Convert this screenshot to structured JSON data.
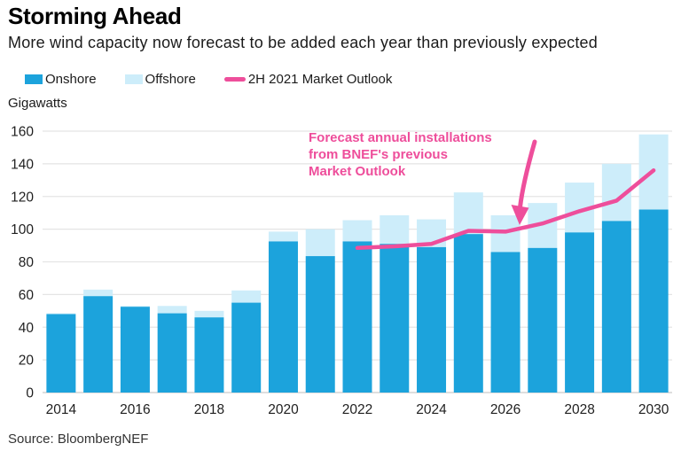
{
  "header": {
    "title": "Storming Ahead",
    "subtitle": "More wind capacity now forecast to be added each year than previously expected"
  },
  "legend": [
    {
      "label": "Onshore",
      "color": "#1CA3DC",
      "type": "swatch"
    },
    {
      "label": "Offshore",
      "color": "#CDEDFA",
      "type": "swatch"
    },
    {
      "label": "2H 2021 Market Outlook",
      "color": "#EE4E9B",
      "type": "line"
    }
  ],
  "unit_label": "Gigawatts",
  "annotation": {
    "color": "#EE4E9B",
    "lines": [
      "Forecast annual installations",
      "from BNEF's previous",
      "Market Outlook"
    ]
  },
  "source": "Source: BloombergNEF",
  "chart_data": {
    "type": "bar",
    "stacked": true,
    "title": "Storming Ahead",
    "subtitle": "More wind capacity now forecast to be added each year than previously expected",
    "ylabel": "Gigawatts",
    "ylim": [
      0,
      160
    ],
    "yticks": [
      0,
      20,
      40,
      60,
      80,
      100,
      120,
      140,
      160
    ],
    "xticks": [
      2014,
      2016,
      2018,
      2020,
      2022,
      2024,
      2026,
      2028,
      2030
    ],
    "grid": true,
    "legend_position": "top",
    "categories": [
      2014,
      2015,
      2016,
      2017,
      2018,
      2019,
      2020,
      2021,
      2022,
      2023,
      2024,
      2025,
      2026,
      2027,
      2028,
      2029,
      2030
    ],
    "series": [
      {
        "name": "Onshore",
        "type": "bar",
        "color": "#1CA3DC",
        "values": [
          48,
          59,
          52.5,
          48.5,
          46,
          55,
          92.5,
          83.5,
          92.5,
          91,
          89,
          97,
          86,
          88.5,
          98,
          105,
          112
        ]
      },
      {
        "name": "Offshore",
        "type": "bar",
        "color": "#CDEDFA",
        "values": [
          0.5,
          4,
          0.5,
          4.5,
          4,
          7.5,
          6,
          16.5,
          13,
          17.5,
          17,
          25.5,
          22.5,
          27.5,
          30.5,
          35,
          46
        ]
      },
      {
        "name": "2H 2021 Market Outlook",
        "type": "line",
        "color": "#EE4E9B",
        "x": [
          2022,
          2023,
          2024,
          2025,
          2026,
          2027,
          2028,
          2029,
          2030
        ],
        "values": [
          88.5,
          89.5,
          91,
          99,
          98.5,
          103.5,
          111,
          117.5,
          136
        ]
      }
    ]
  }
}
